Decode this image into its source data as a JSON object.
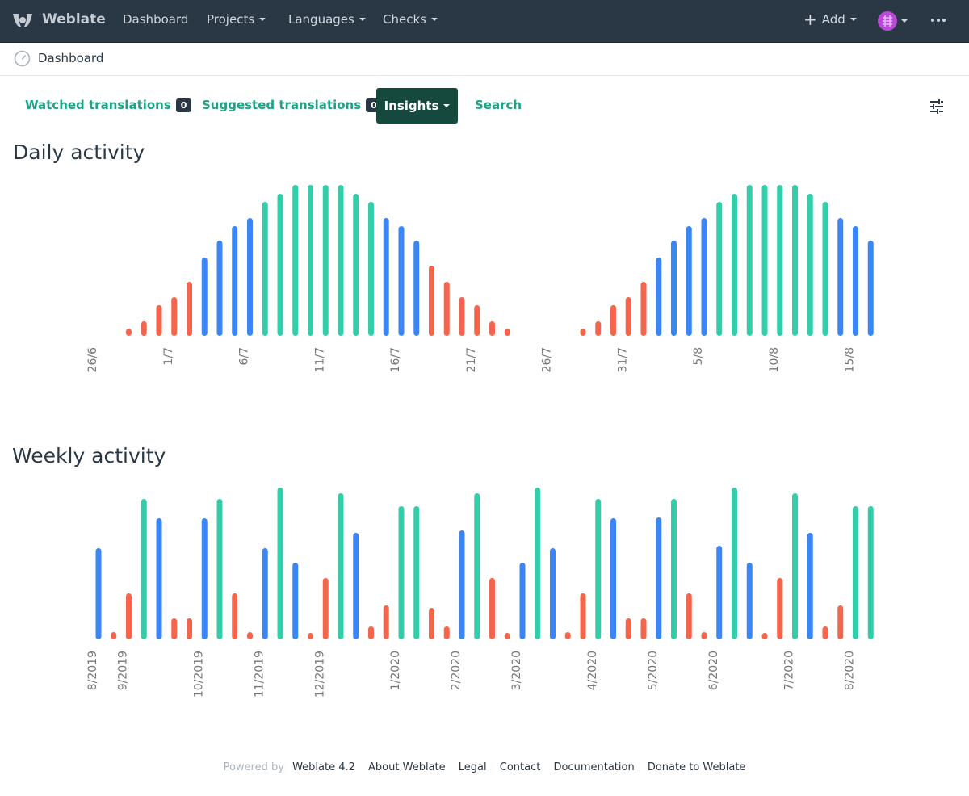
{
  "navbar": {
    "brand": "Weblate",
    "items": [
      "Dashboard",
      "Projects",
      "Languages",
      "Checks"
    ],
    "add": "Add"
  },
  "breadcrumb": "Dashboard",
  "tabs": [
    {
      "label": "Watched translations",
      "count": 0
    },
    {
      "label": "Suggested translations",
      "count": 0
    },
    {
      "label": "Insights"
    },
    {
      "label": "Search"
    }
  ],
  "chart_data": [
    {
      "type": "bar",
      "title": "Daily activity",
      "categories": [
        "26/6",
        null,
        null,
        null,
        null,
        "1/7",
        null,
        null,
        null,
        null,
        "6/7",
        null,
        null,
        null,
        null,
        "11/7",
        null,
        null,
        null,
        null,
        "16/7",
        null,
        null,
        null,
        null,
        "21/7",
        null,
        null,
        null,
        null,
        "26/7",
        null,
        null,
        null,
        null,
        "31/7",
        null,
        null,
        null,
        null,
        "5/8",
        null,
        null,
        null,
        null,
        "10/8",
        null,
        null,
        null,
        null,
        "15/8",
        null
      ],
      "values": [
        0,
        0,
        9,
        18,
        38,
        48,
        67,
        97,
        118,
        136,
        146,
        166,
        176,
        187,
        187,
        187,
        187,
        176,
        166,
        146,
        136,
        118,
        87,
        67,
        48,
        38,
        18,
        9,
        0,
        0,
        0,
        0,
        9,
        18,
        38,
        48,
        67,
        97,
        118,
        136,
        146,
        166,
        176,
        187,
        187,
        187,
        187,
        176,
        166,
        146,
        136,
        118
      ],
      "colors": [
        "#f5654b",
        "#f5654b",
        "#f5654b",
        "#f5654b",
        "#f5654b",
        "#f5654b",
        "#f5654b",
        "#3b86f6",
        "#3b86f6",
        "#3b86f6",
        "#3b86f6",
        "#34cda9",
        "#34cda9",
        "#34cda9",
        "#34cda9",
        "#34cda9",
        "#34cda9",
        "#34cda9",
        "#34cda9",
        "#3b86f6",
        "#3b86f6",
        "#3b86f6",
        "#f5654b",
        "#f5654b",
        "#f5654b",
        "#f5654b",
        "#f5654b",
        "#f5654b",
        "#f5654b",
        "#f5654b",
        "#f5654b",
        "#f5654b",
        "#f5654b",
        "#f5654b",
        "#f5654b",
        "#f5654b",
        "#f5654b",
        "#3b86f6",
        "#3b86f6",
        "#3b86f6",
        "#3b86f6",
        "#34cda9",
        "#34cda9",
        "#34cda9",
        "#34cda9",
        "#34cda9",
        "#34cda9",
        "#34cda9",
        "#34cda9",
        "#3b86f6",
        "#3b86f6",
        "#3b86f6"
      ],
      "ylim": [
        0,
        188
      ]
    },
    {
      "type": "bar",
      "title": "Weekly activity",
      "categories": [
        "8/2019",
        null,
        "9/2019",
        null,
        null,
        null,
        null,
        "10/2019",
        null,
        null,
        null,
        "11/2019",
        null,
        null,
        null,
        "12/2019",
        null,
        null,
        null,
        null,
        "1/2020",
        null,
        null,
        null,
        "2/2020",
        null,
        null,
        null,
        "3/2020",
        null,
        null,
        null,
        null,
        "4/2020",
        null,
        null,
        null,
        "5/2020",
        null,
        null,
        null,
        "6/2020",
        null,
        null,
        null,
        null,
        "7/2020",
        null,
        null,
        null,
        "8/2020",
        null
      ],
      "values": [
        113,
        9,
        57,
        174,
        150,
        26,
        26,
        150,
        174,
        57,
        9,
        113,
        188,
        95,
        8,
        76,
        181,
        132,
        16,
        42,
        165,
        165,
        39,
        16,
        135,
        181,
        76,
        8,
        95,
        188,
        113,
        9,
        57,
        174,
        150,
        26,
        26,
        151,
        174,
        57,
        9,
        116,
        188,
        95,
        8,
        76,
        181,
        132,
        16,
        42,
        165,
        165
      ],
      "colors": [
        "#3b86f6",
        "#f5654b",
        "#f5654b",
        "#34cda9",
        "#3b86f6",
        "#f5654b",
        "#f5654b",
        "#3b86f6",
        "#34cda9",
        "#f5654b",
        "#f5654b",
        "#3b86f6",
        "#34cda9",
        "#3b86f6",
        "#f5654b",
        "#f5654b",
        "#34cda9",
        "#3b86f6",
        "#f5654b",
        "#f5654b",
        "#34cda9",
        "#34cda9",
        "#f5654b",
        "#f5654b",
        "#3b86f6",
        "#34cda9",
        "#f5654b",
        "#f5654b",
        "#3b86f6",
        "#34cda9",
        "#3b86f6",
        "#f5654b",
        "#f5654b",
        "#34cda9",
        "#3b86f6",
        "#f5654b",
        "#f5654b",
        "#3b86f6",
        "#34cda9",
        "#f5654b",
        "#f5654b",
        "#3b86f6",
        "#34cda9",
        "#3b86f6",
        "#f5654b",
        "#f5654b",
        "#34cda9",
        "#3b86f6",
        "#f5654b",
        "#f5654b",
        "#34cda9",
        "#34cda9"
      ],
      "ylim": [
        0,
        188
      ]
    }
  ],
  "footer": {
    "powered_by": "Powered by",
    "links": [
      "Weblate 4.2",
      "About Weblate",
      "Legal",
      "Contact",
      "Documentation",
      "Donate to Weblate"
    ]
  }
}
